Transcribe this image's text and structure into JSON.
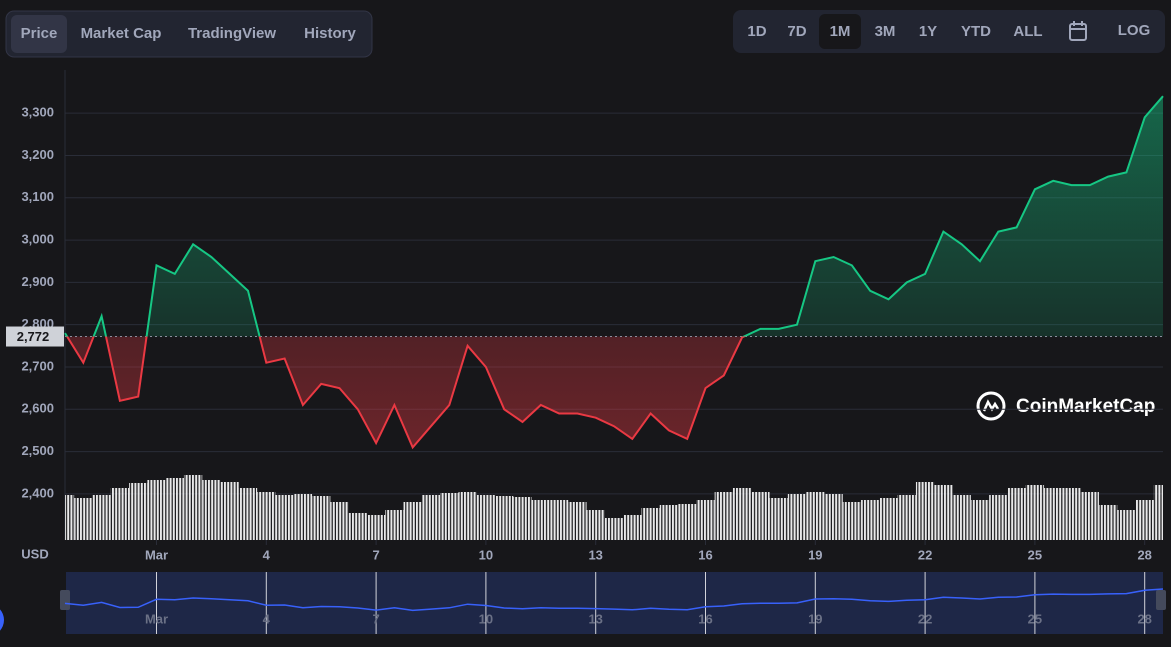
{
  "chart_data": {
    "type": "line",
    "tabs": [
      "Price",
      "Market Cap",
      "TradingView",
      "History"
    ],
    "active_tab": "Price",
    "ranges": [
      "1D",
      "7D",
      "1M",
      "3M",
      "1Y",
      "YTD",
      "ALL"
    ],
    "active_range": "1M",
    "log_button": "LOG",
    "currency": "USD",
    "watermark": "CoinMarketCap",
    "baseline": {
      "value": 2772,
      "label": "2,772"
    },
    "x": [
      -1.5,
      -1,
      -0.5,
      0,
      0.5,
      1,
      1.5,
      2,
      2.5,
      3,
      3.5,
      4,
      4.5,
      5,
      5.5,
      6,
      6.5,
      7,
      7.5,
      8,
      8.5,
      9,
      9.5,
      10,
      10.5,
      11,
      11.5,
      12,
      12.5,
      13,
      13.5,
      14,
      14.5,
      15,
      15.5,
      16,
      16.5,
      17,
      17.5,
      18,
      18.5,
      19,
      19.5,
      20,
      20.5,
      21,
      21.5,
      22,
      22.5,
      23,
      23.5,
      24,
      24.5,
      25,
      25.5,
      26,
      26.5,
      27,
      27.5,
      28,
      28.5
    ],
    "series": [
      {
        "color": "#16c784",
        "down_color": "#ea3943",
        "values": [
          2780,
          2710,
          2820,
          2620,
          2630,
          2940,
          2920,
          2990,
          2960,
          2920,
          2880,
          2710,
          2720,
          2610,
          2660,
          2650,
          2600,
          2520,
          2610,
          2510,
          2560,
          2610,
          2750,
          2700,
          2600,
          2570,
          2610,
          2590,
          2590,
          2580,
          2560,
          2530,
          2590,
          2550,
          2530,
          2650,
          2680,
          2770,
          2790,
          2790,
          2800,
          2950,
          2960,
          2940,
          2880,
          2860,
          2900,
          2920,
          3020,
          2990,
          2950,
          3020,
          3030,
          3120,
          3140,
          3130,
          3130,
          3150,
          3160,
          3290,
          3340
        ]
      },
      {
        "axis": "y2",
        "color": "#ffffff",
        "values": [
          45,
          42,
          45,
          52,
          57,
          60,
          62,
          65,
          60,
          58,
          52,
          48,
          45,
          46,
          44,
          38,
          27,
          25,
          30,
          38,
          45,
          47,
          48,
          45,
          44,
          43,
          40,
          40,
          38,
          30,
          22,
          25,
          32,
          35,
          36,
          40,
          48,
          52,
          48,
          42,
          46,
          48,
          46,
          38,
          40,
          42,
          45,
          58,
          55,
          45,
          40,
          45,
          52,
          55,
          52,
          52,
          48,
          35,
          30,
          40,
          55
        ]
      }
    ],
    "xlim": [
      -1.5,
      28.5
    ],
    "xticks": [
      {
        "value": 1,
        "label": "Mar"
      },
      4,
      7,
      10,
      13,
      16,
      19,
      22,
      25,
      28
    ],
    "ylim": [
      2291,
      3402
    ],
    "yticks": [
      {
        "value": 2400,
        "label": "2,400"
      },
      {
        "value": 2500,
        "label": "2,500"
      },
      {
        "value": 2600,
        "label": "2,600"
      },
      {
        "value": 2700,
        "label": "2,700"
      },
      {
        "value": 2800,
        "label": "2,800"
      },
      {
        "value": 2900,
        "label": "2,900"
      },
      {
        "value": 3000,
        "label": "3,000"
      },
      {
        "value": 3100,
        "label": "3,100"
      },
      {
        "value": 3200,
        "label": "3,200"
      },
      {
        "value": 3300,
        "label": "3,300"
      }
    ],
    "y2lim": [
      0,
      470
    ],
    "grid": true,
    "navigator_color": "#3861fb"
  }
}
